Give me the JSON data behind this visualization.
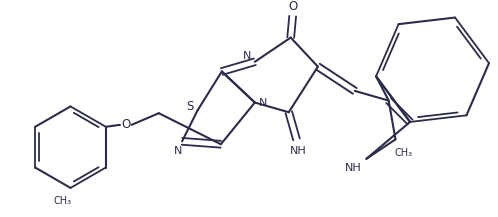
{
  "bg": "#ffffff",
  "lc": "#2c2c4a",
  "lw": 1.5,
  "figsize": [
    4.98,
    2.17
  ],
  "dpi": 100,
  "xlim": [
    0,
    498
  ],
  "ylim": [
    0,
    217
  ]
}
